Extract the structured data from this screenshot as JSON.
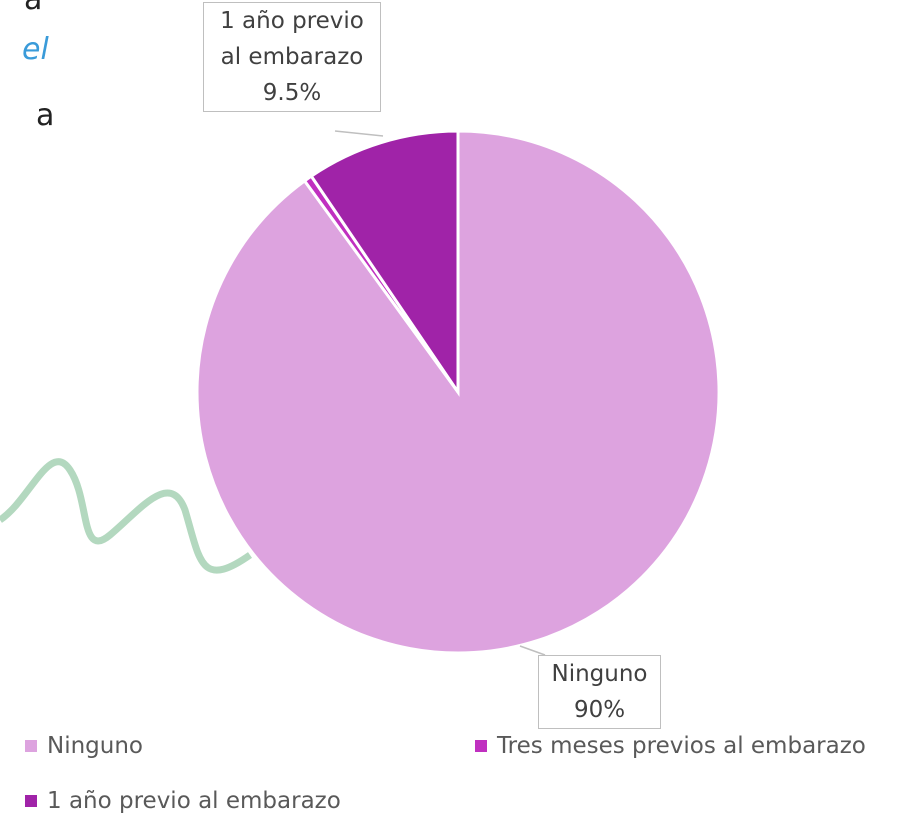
{
  "background_text": [
    "a",
    "el",
    "a"
  ],
  "chart_data": {
    "type": "pie",
    "categories": [
      "Ninguno",
      "Tres meses previos al embarazo",
      "1 año previo al embarazo"
    ],
    "values": [
      90,
      0.5,
      9.5
    ],
    "value_labels": [
      "90%",
      null,
      "9.5%"
    ],
    "colors": [
      "#dda3df",
      "#c030c0",
      "#a023a8"
    ],
    "legend": "bottom"
  }
}
